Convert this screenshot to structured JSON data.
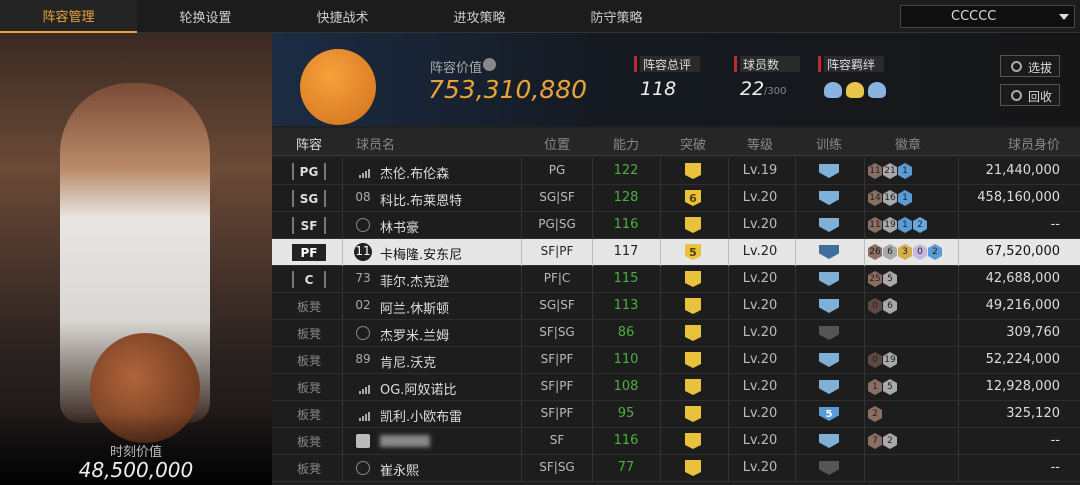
{
  "tabs": [
    {
      "label": "阵容管理",
      "active": true
    },
    {
      "label": "轮换设置"
    },
    {
      "label": "快捷战术"
    },
    {
      "label": "进攻策略"
    },
    {
      "label": "防守策略"
    }
  ],
  "team_selector": "CCCCC",
  "moment_value": {
    "label": "时刻价值",
    "value": "48,500,000"
  },
  "lineup_value": {
    "label": "阵容价值",
    "value": "753,310,880"
  },
  "stats": [
    {
      "label": "阵容总评",
      "value": "118"
    },
    {
      "label": "球员数",
      "value": "22",
      "suffix": "/300"
    },
    {
      "label": "阵容羁绊"
    }
  ],
  "buttons": [
    "选拔",
    "回收"
  ],
  "table": {
    "columns": [
      "阵容",
      "球员名",
      "位置",
      "能力",
      "突破",
      "等级",
      "训练",
      "徽章",
      "球员身价"
    ],
    "rows": [
      {
        "slot": "PG",
        "starter": true,
        "icon": "bars",
        "name": "杰伦.布伦森",
        "pos": "PG",
        "ovr": "122",
        "level": "Lv.19",
        "train_color": "#7fb0d8",
        "badges": [
          {
            "text": "11",
            "color": "#8a6e62"
          },
          {
            "text": "21",
            "color": "#a9a9a9"
          },
          {
            "text": "1",
            "color": "#5b9bd5"
          }
        ],
        "price": "21,440,000"
      },
      {
        "slot": "SG",
        "starter": true,
        "jersey": "08",
        "name": "科比.布莱恩特",
        "pos": "SG|SF",
        "ovr": "128",
        "break": "6",
        "level": "Lv.20",
        "train_color": "#7fb0d8",
        "badges": [
          {
            "text": "14",
            "color": "#8a6e62"
          },
          {
            "text": "16",
            "color": "#a9a9a9"
          },
          {
            "text": "1",
            "color": "#5b9bd5"
          }
        ],
        "price": "458,160,000"
      },
      {
        "slot": "SF",
        "starter": true,
        "icon": "star",
        "name": "林书豪",
        "pos": "PG|SG",
        "ovr": "116",
        "level": "Lv.20",
        "train_color": "#7fb0d8",
        "badges": [
          {
            "text": "11",
            "color": "#8a6e62"
          },
          {
            "text": "19",
            "color": "#a9a9a9"
          },
          {
            "text": "1",
            "color": "#5b9bd5"
          },
          {
            "text": "2",
            "color": "#6aa6e0"
          }
        ],
        "price": "--"
      },
      {
        "slot": "PF",
        "starter": true,
        "selected": true,
        "icon": "circle",
        "jersey": "11",
        "name": "卡梅隆.安东尼",
        "pos": "SF|PF",
        "ovr": "117",
        "break": "5",
        "level": "Lv.20",
        "train_color": "#3f6f9a",
        "badges": [
          {
            "text": "26",
            "color": "#8a6e62"
          },
          {
            "text": "6",
            "color": "#a9a9a9"
          },
          {
            "text": "3",
            "color": "#d4ae4a"
          },
          {
            "text": "0",
            "color": "#c8b6e0"
          },
          {
            "text": "2",
            "color": "#5b9bd5"
          }
        ],
        "price": "67,520,000"
      },
      {
        "slot": "C",
        "starter": true,
        "jersey": "73",
        "name": "菲尔.杰克逊",
        "pos": "PF|C",
        "ovr": "115",
        "level": "Lv.20",
        "train_color": "#7fb0d8",
        "badges": [
          {
            "text": "25",
            "color": "#8a6e62"
          },
          {
            "text": "5",
            "color": "#a9a9a9"
          }
        ],
        "price": "42,688,000"
      },
      {
        "slot": "板凳",
        "jersey": "02",
        "name": "阿兰.休斯顿",
        "pos": "SG|SF",
        "ovr": "113",
        "level": "Lv.20",
        "train_color": "#7fb0d8",
        "badges": [
          {
            "text": "0",
            "color": "#5e4a42"
          },
          {
            "text": "6",
            "color": "#a9a9a9"
          }
        ],
        "price": "49,216,000"
      },
      {
        "slot": "板凳",
        "icon": "star",
        "name": "杰罗米.兰姆",
        "pos": "SF|SG",
        "ovr": "86",
        "level": "Lv.20",
        "train_color": "#555555",
        "badges": [],
        "price": "309,760"
      },
      {
        "slot": "板凳",
        "jersey": "89",
        "name": "肯尼.沃克",
        "pos": "SF|PF",
        "ovr": "110",
        "level": "Lv.20",
        "train_color": "#7fb0d8",
        "badges": [
          {
            "text": "0",
            "color": "#5e4a42"
          },
          {
            "text": "19",
            "color": "#a9a9a9"
          }
        ],
        "price": "52,224,000"
      },
      {
        "slot": "板凳",
        "icon": "bars",
        "name": "OG.阿奴诺比",
        "pos": "SF|PF",
        "ovr": "108",
        "level": "Lv.20",
        "train_color": "#7fb0d8",
        "badges": [
          {
            "text": "1",
            "color": "#8a6e62"
          },
          {
            "text": "5",
            "color": "#a9a9a9"
          }
        ],
        "price": "12,928,000"
      },
      {
        "slot": "板凳",
        "icon": "bars",
        "name": "凯利.小欧布雷",
        "pos": "SF|PF",
        "ovr": "95",
        "level": "Lv.20",
        "train_color": "#5b9bd5",
        "train_level": "5",
        "badges": [
          {
            "text": "2",
            "color": "#8a6e62"
          }
        ],
        "price": "325,120"
      },
      {
        "slot": "板凳",
        "icon": "person",
        "name": null,
        "pos": "SF",
        "ovr": "116",
        "level": "Lv.20",
        "train_color": "#7fb0d8",
        "badges": [
          {
            "text": "7",
            "color": "#8a6e62"
          },
          {
            "text": "2",
            "color": "#a9a9a9"
          }
        ],
        "price": "--"
      },
      {
        "slot": "板凳",
        "icon": "star",
        "name": "崔永熙",
        "pos": "SF|SG",
        "ovr": "77",
        "level": "Lv.20",
        "train_color": "#555555",
        "badges": [],
        "price": "--"
      }
    ]
  }
}
